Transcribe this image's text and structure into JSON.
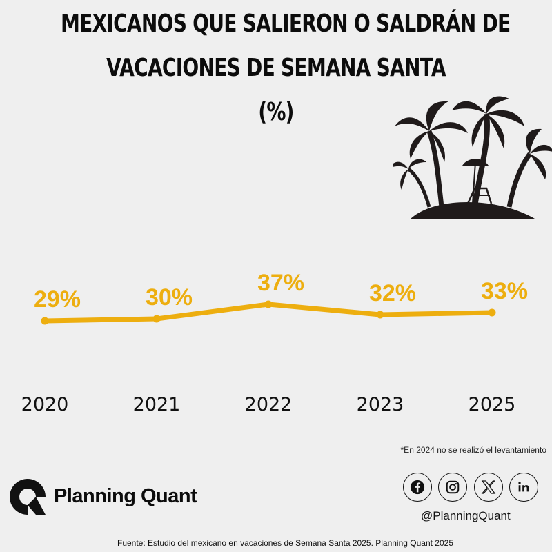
{
  "header": {
    "title_line1": "MEXICANOS QUE  SALIERON O SALDRÁN DE",
    "title_line2": "VACACIONES DE SEMANA SANTA",
    "title_line3": "(%)"
  },
  "illustration": {
    "icon": "palm-island-icon"
  },
  "chart_data": {
    "type": "line",
    "categories": [
      "2020",
      "2021",
      "2022",
      "2023",
      "2025"
    ],
    "values": [
      29,
      30,
      37,
      32,
      33
    ],
    "value_labels": [
      "29%",
      "30%",
      "37%",
      "32%",
      "33%"
    ],
    "title": "MEXICANOS QUE  SALIERON O SALDRÁN DE VACACIONES DE SEMANA SANTA (%)",
    "xlabel": "",
    "ylabel": "",
    "grid": false,
    "color": "#edae0f"
  },
  "footnote": "*En 2024 no se realizó el levantamiento",
  "brand": {
    "name": "Planning Quant",
    "logo_icon": "planning-quant-logo-icon"
  },
  "social": {
    "icons": [
      "facebook-icon",
      "instagram-icon",
      "x-icon",
      "linkedin-icon"
    ],
    "handle": "@PlanningQuant"
  },
  "source": "Fuente: Estudio del mexicano en vacaciones de Semana Santa 2025. Planning Quant  2025"
}
